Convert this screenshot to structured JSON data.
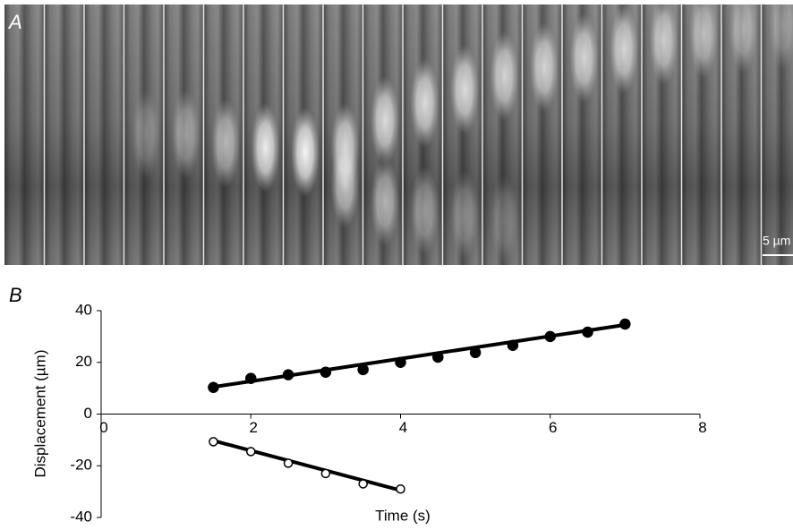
{
  "image": {
    "label": "A",
    "scale_bar": "5 µm"
  },
  "chart_data": {
    "type": "scatter",
    "label": "B",
    "xlabel": "Time (s)",
    "ylabel": "Displacement (µm)",
    "xlim": [
      0,
      8
    ],
    "ylim": [
      -40,
      40
    ],
    "xticks": [
      0,
      2,
      4,
      6,
      8
    ],
    "yticks": [
      40,
      20,
      0,
      -20,
      -40
    ],
    "series": [
      {
        "color": "#000000",
        "marker": "filled",
        "x": [
          1.5,
          2,
          2.5,
          3,
          3.5,
          4,
          4.5,
          5,
          5.5,
          6,
          6.5,
          7
        ],
        "values": [
          10.3,
          13.8,
          15.2,
          16.2,
          17.2,
          20,
          22,
          23.8,
          26.6,
          30,
          31.7,
          34.8
        ]
      },
      {
        "color": "#000000",
        "marker": "open",
        "x": [
          1.5,
          2,
          2.5,
          3,
          3.5,
          4
        ],
        "values": [
          -10.7,
          -14.5,
          -19,
          -23,
          -27,
          -29
        ]
      }
    ],
    "fit_lines": [
      {
        "x": [
          1.5,
          7
        ],
        "values": [
          10.5,
          34.5
        ]
      },
      {
        "x": [
          1.5,
          4
        ],
        "values": [
          -10.3,
          -29.5
        ]
      }
    ]
  }
}
